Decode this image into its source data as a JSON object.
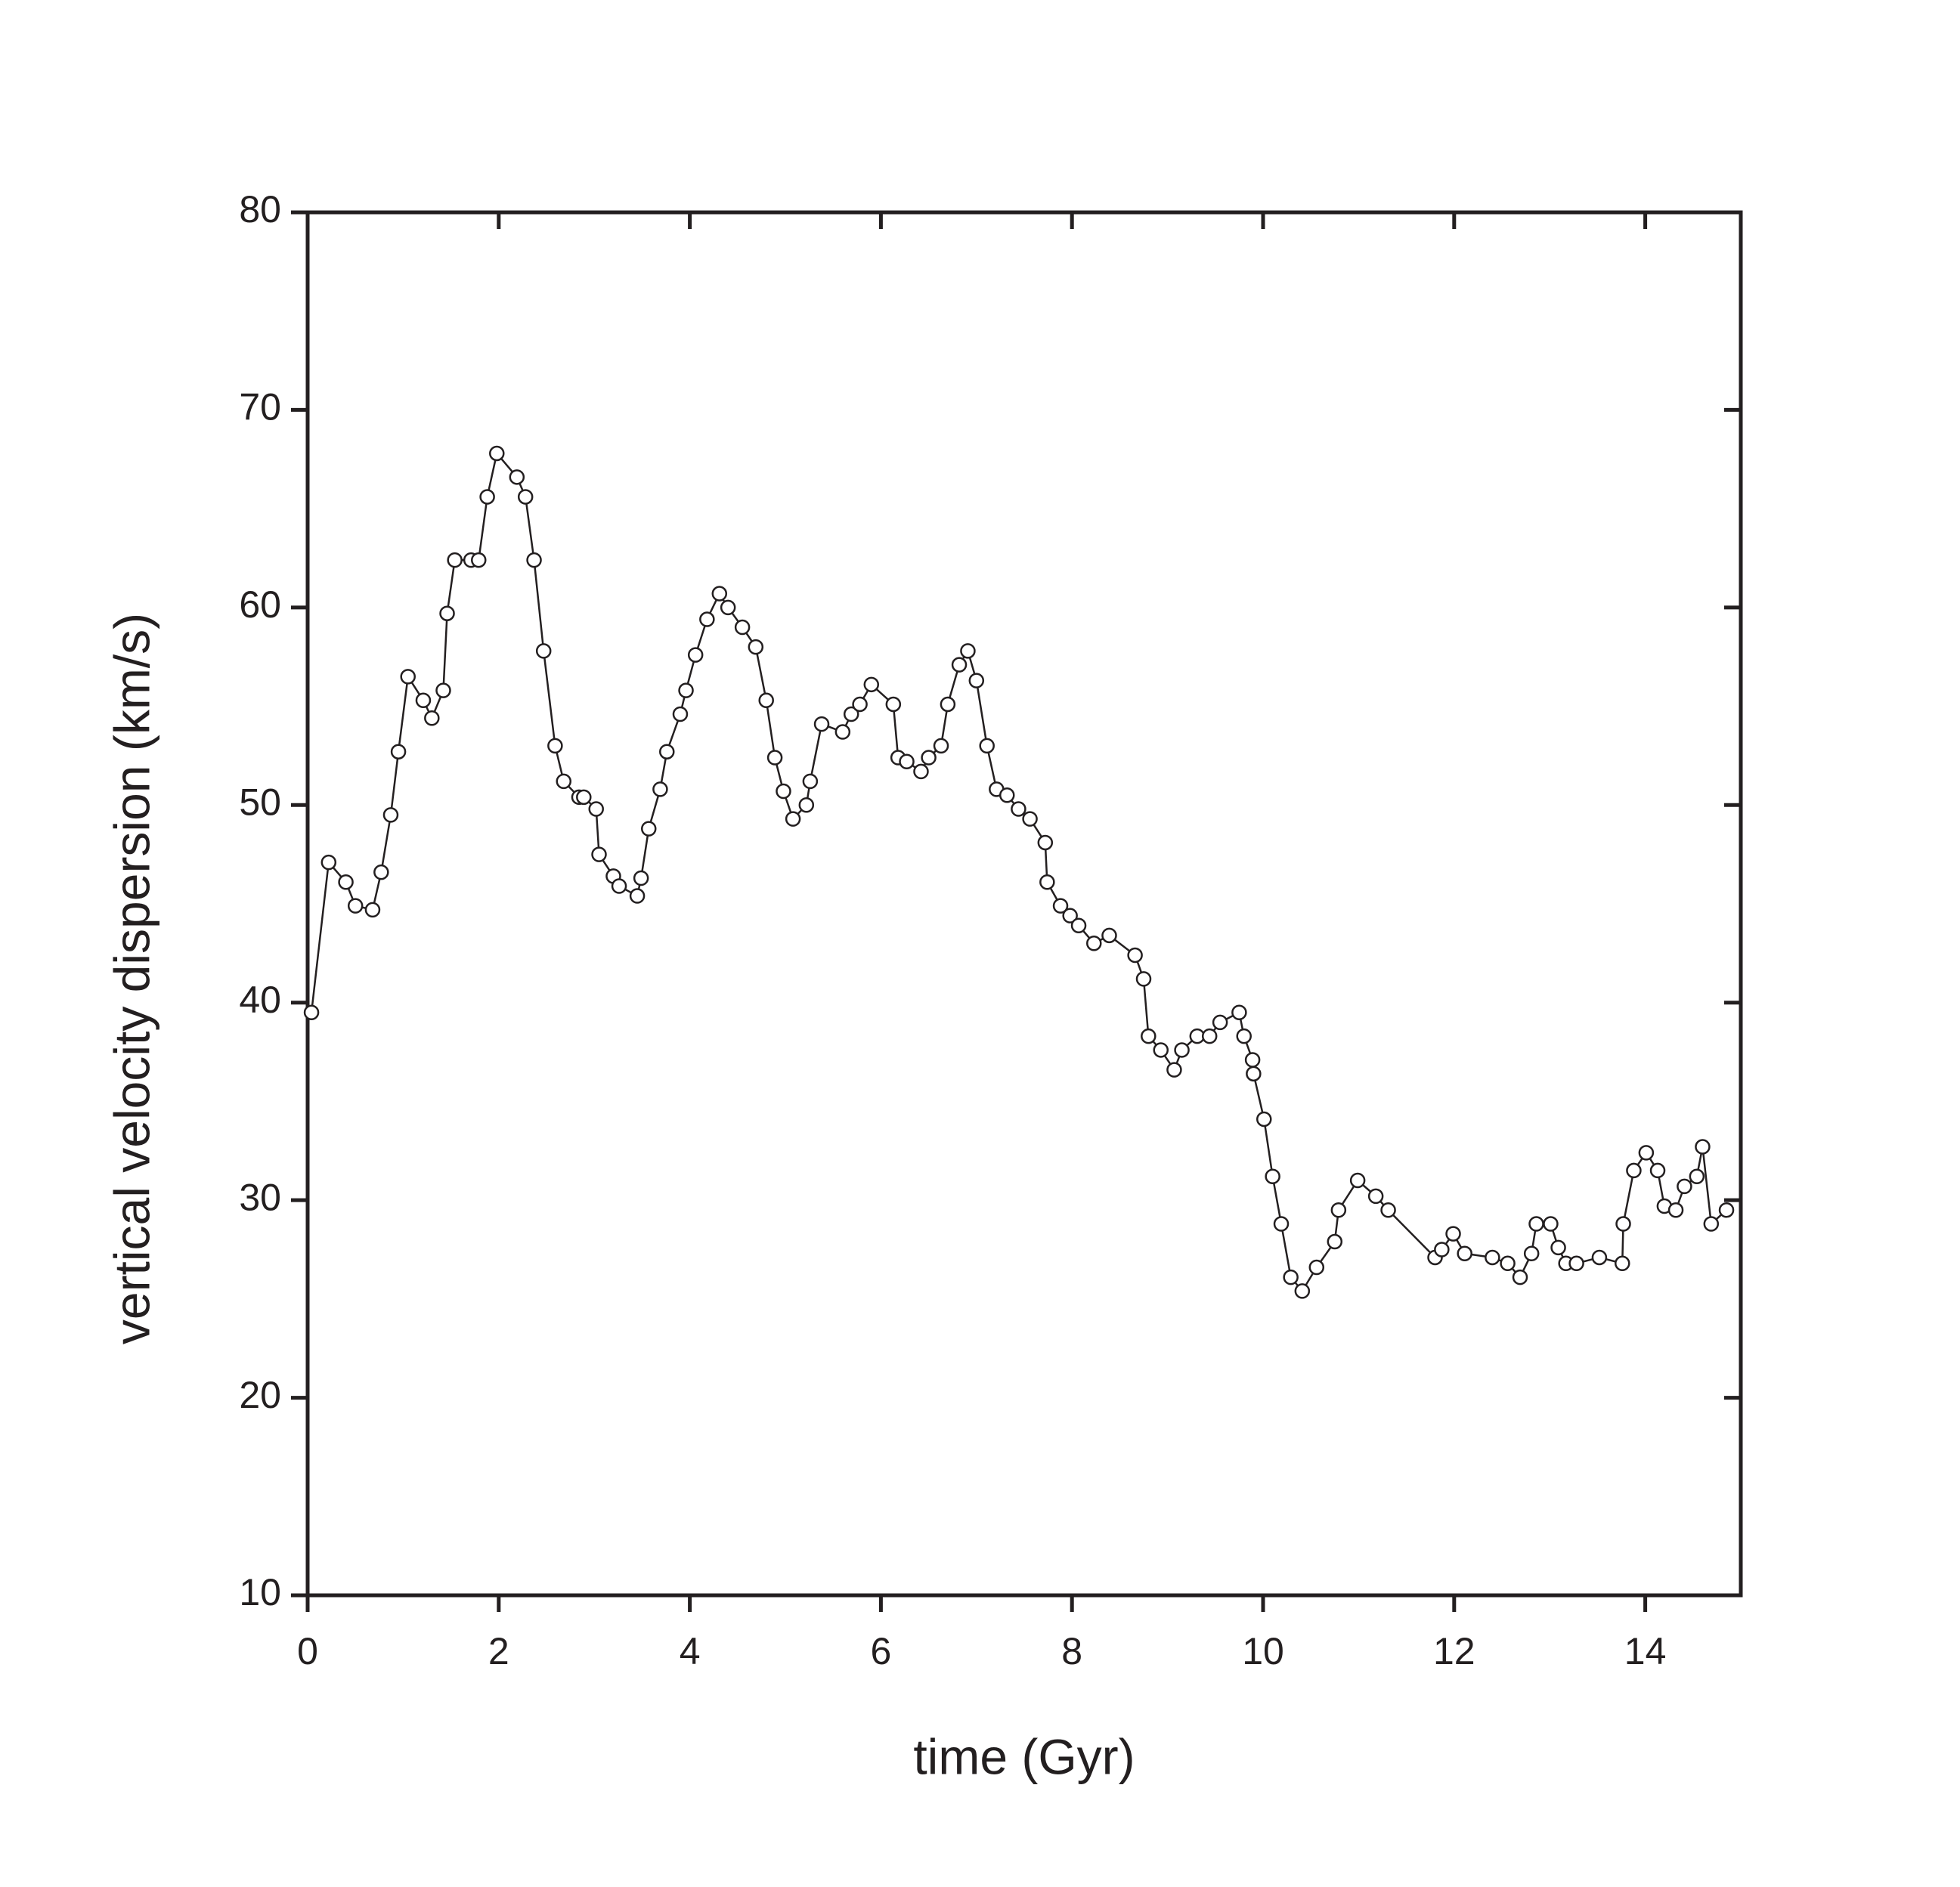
{
  "chart_data": {
    "type": "line",
    "x_label": "time (Gyr)",
    "y_label": "vertical velocity dispersion (km/s)",
    "xlim": [
      0,
      15
    ],
    "xticks": [
      0,
      2,
      4,
      6,
      8,
      10,
      12,
      14
    ],
    "ylim": [
      10,
      80
    ],
    "yticks": [
      10,
      20,
      30,
      40,
      50,
      60,
      70,
      80
    ],
    "color": "#231f20",
    "x": [
      0.04,
      0.22,
      0.4,
      0.5,
      0.68,
      0.77,
      0.87,
      0.95,
      1.05,
      1.21,
      1.3,
      1.42,
      1.46,
      1.54,
      1.71,
      1.79,
      1.88,
      1.98,
      2.19,
      2.28,
      2.37,
      2.47,
      2.59,
      2.68,
      2.84,
      2.89,
      3.02,
      3.05,
      3.2,
      3.26,
      3.45,
      3.49,
      3.57,
      3.69,
      3.76,
      3.9,
      3.96,
      4.06,
      4.18,
      4.31,
      4.4,
      4.55,
      4.69,
      4.8,
      4.89,
      4.98,
      5.08,
      5.22,
      5.26,
      5.38,
      5.6,
      5.69,
      5.78,
      5.9,
      6.13,
      6.18,
      6.27,
      6.42,
      6.5,
      6.63,
      6.7,
      6.82,
      6.91,
      7.0,
      7.11,
      7.21,
      7.32,
      7.44,
      7.56,
      7.72,
      7.74,
      7.88,
      7.98,
      8.07,
      8.23,
      8.39,
      8.66,
      8.75,
      8.8,
      8.93,
      9.07,
      9.15,
      9.31,
      9.44,
      9.55,
      9.75,
      9.8,
      9.89,
      9.9,
      10.01,
      10.1,
      10.19,
      10.29,
      10.41,
      10.56,
      10.75,
      10.79,
      10.99,
      11.18,
      11.31,
      11.8,
      11.87,
      11.99,
      12.11,
      12.4,
      12.56,
      12.69,
      12.81,
      12.86,
      13.01,
      13.09,
      13.17,
      13.28,
      13.52,
      13.76,
      13.77,
      13.88,
      14.01,
      14.13,
      14.2,
      14.32,
      14.41,
      14.54,
      14.6,
      14.69,
      14.85
    ],
    "values": [
      39.5,
      47.1,
      46.1,
      44.9,
      44.7,
      46.6,
      49.5,
      52.7,
      56.5,
      55.3,
      54.4,
      55.8,
      59.7,
      62.4,
      62.4,
      62.4,
      65.6,
      67.8,
      66.6,
      65.6,
      62.4,
      57.8,
      53.0,
      51.2,
      50.4,
      50.4,
      49.8,
      47.5,
      46.4,
      45.9,
      45.4,
      46.3,
      48.8,
      50.8,
      52.7,
      54.6,
      55.8,
      57.6,
      59.4,
      60.7,
      60.0,
      59.0,
      58.0,
      55.3,
      52.4,
      50.7,
      49.3,
      50.0,
      51.2,
      54.1,
      53.7,
      54.6,
      55.1,
      56.1,
      55.1,
      52.4,
      52.2,
      51.7,
      52.4,
      53.0,
      55.1,
      57.1,
      57.8,
      56.3,
      53.0,
      50.8,
      50.5,
      49.8,
      49.3,
      48.1,
      46.1,
      44.9,
      44.4,
      43.9,
      43.0,
      43.4,
      42.4,
      41.2,
      38.3,
      37.6,
      36.6,
      37.6,
      38.3,
      38.3,
      39.0,
      39.5,
      38.3,
      37.1,
      36.4,
      34.1,
      31.2,
      28.8,
      26.1,
      25.4,
      26.6,
      27.9,
      29.5,
      31.0,
      30.2,
      29.5,
      27.1,
      27.5,
      28.3,
      27.3,
      27.1,
      26.8,
      26.1,
      27.3,
      28.8,
      28.8,
      27.6,
      26.8,
      26.8,
      27.1,
      26.8,
      28.8,
      31.5,
      32.4,
      31.5,
      29.7,
      29.5,
      30.7,
      31.2,
      32.7,
      28.8,
      29.5
    ]
  }
}
